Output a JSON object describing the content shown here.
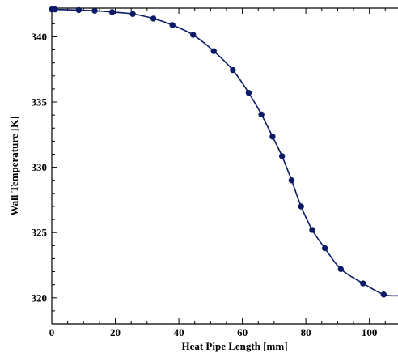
{
  "chart_data": {
    "type": "line",
    "title": "",
    "xlabel": "Heat Pipe Length [mm]",
    "ylabel": "Wall Temperature [K]",
    "xlim": [
      0,
      109
    ],
    "ylim": [
      318,
      342.2
    ],
    "x_ticks": [
      0,
      20,
      40,
      60,
      80,
      100
    ],
    "y_ticks": [
      320,
      325,
      330,
      335,
      340
    ],
    "x_tick_labels": [
      "0",
      "20",
      "40",
      "60",
      "80",
      "100"
    ],
    "y_tick_labels": [
      "320",
      "325",
      "330",
      "335",
      "340"
    ],
    "grid": false,
    "legend": "none",
    "series": [
      {
        "color": "#0b1a66",
        "marker": "circle",
        "x": [
          0,
          1,
          8.5,
          13.5,
          19,
          25.5,
          32,
          38,
          44.5,
          51,
          57,
          62,
          66,
          69.5,
          72.5,
          75.5,
          78.5,
          82,
          86,
          91,
          98,
          104.5,
          109
        ],
        "y": [
          342.1,
          342.1,
          342.05,
          342.0,
          341.9,
          341.75,
          341.4,
          340.9,
          340.15,
          338.9,
          337.45,
          335.7,
          334.05,
          332.35,
          330.85,
          329.0,
          327.0,
          325.2,
          323.8,
          322.2,
          321.1,
          320.25,
          320.15
        ],
        "marker_indices": [
          0,
          1,
          2,
          3,
          4,
          5,
          6,
          7,
          8,
          9,
          10,
          11,
          12,
          13,
          14,
          15,
          16,
          17,
          18,
          19,
          20,
          21
        ]
      }
    ]
  }
}
